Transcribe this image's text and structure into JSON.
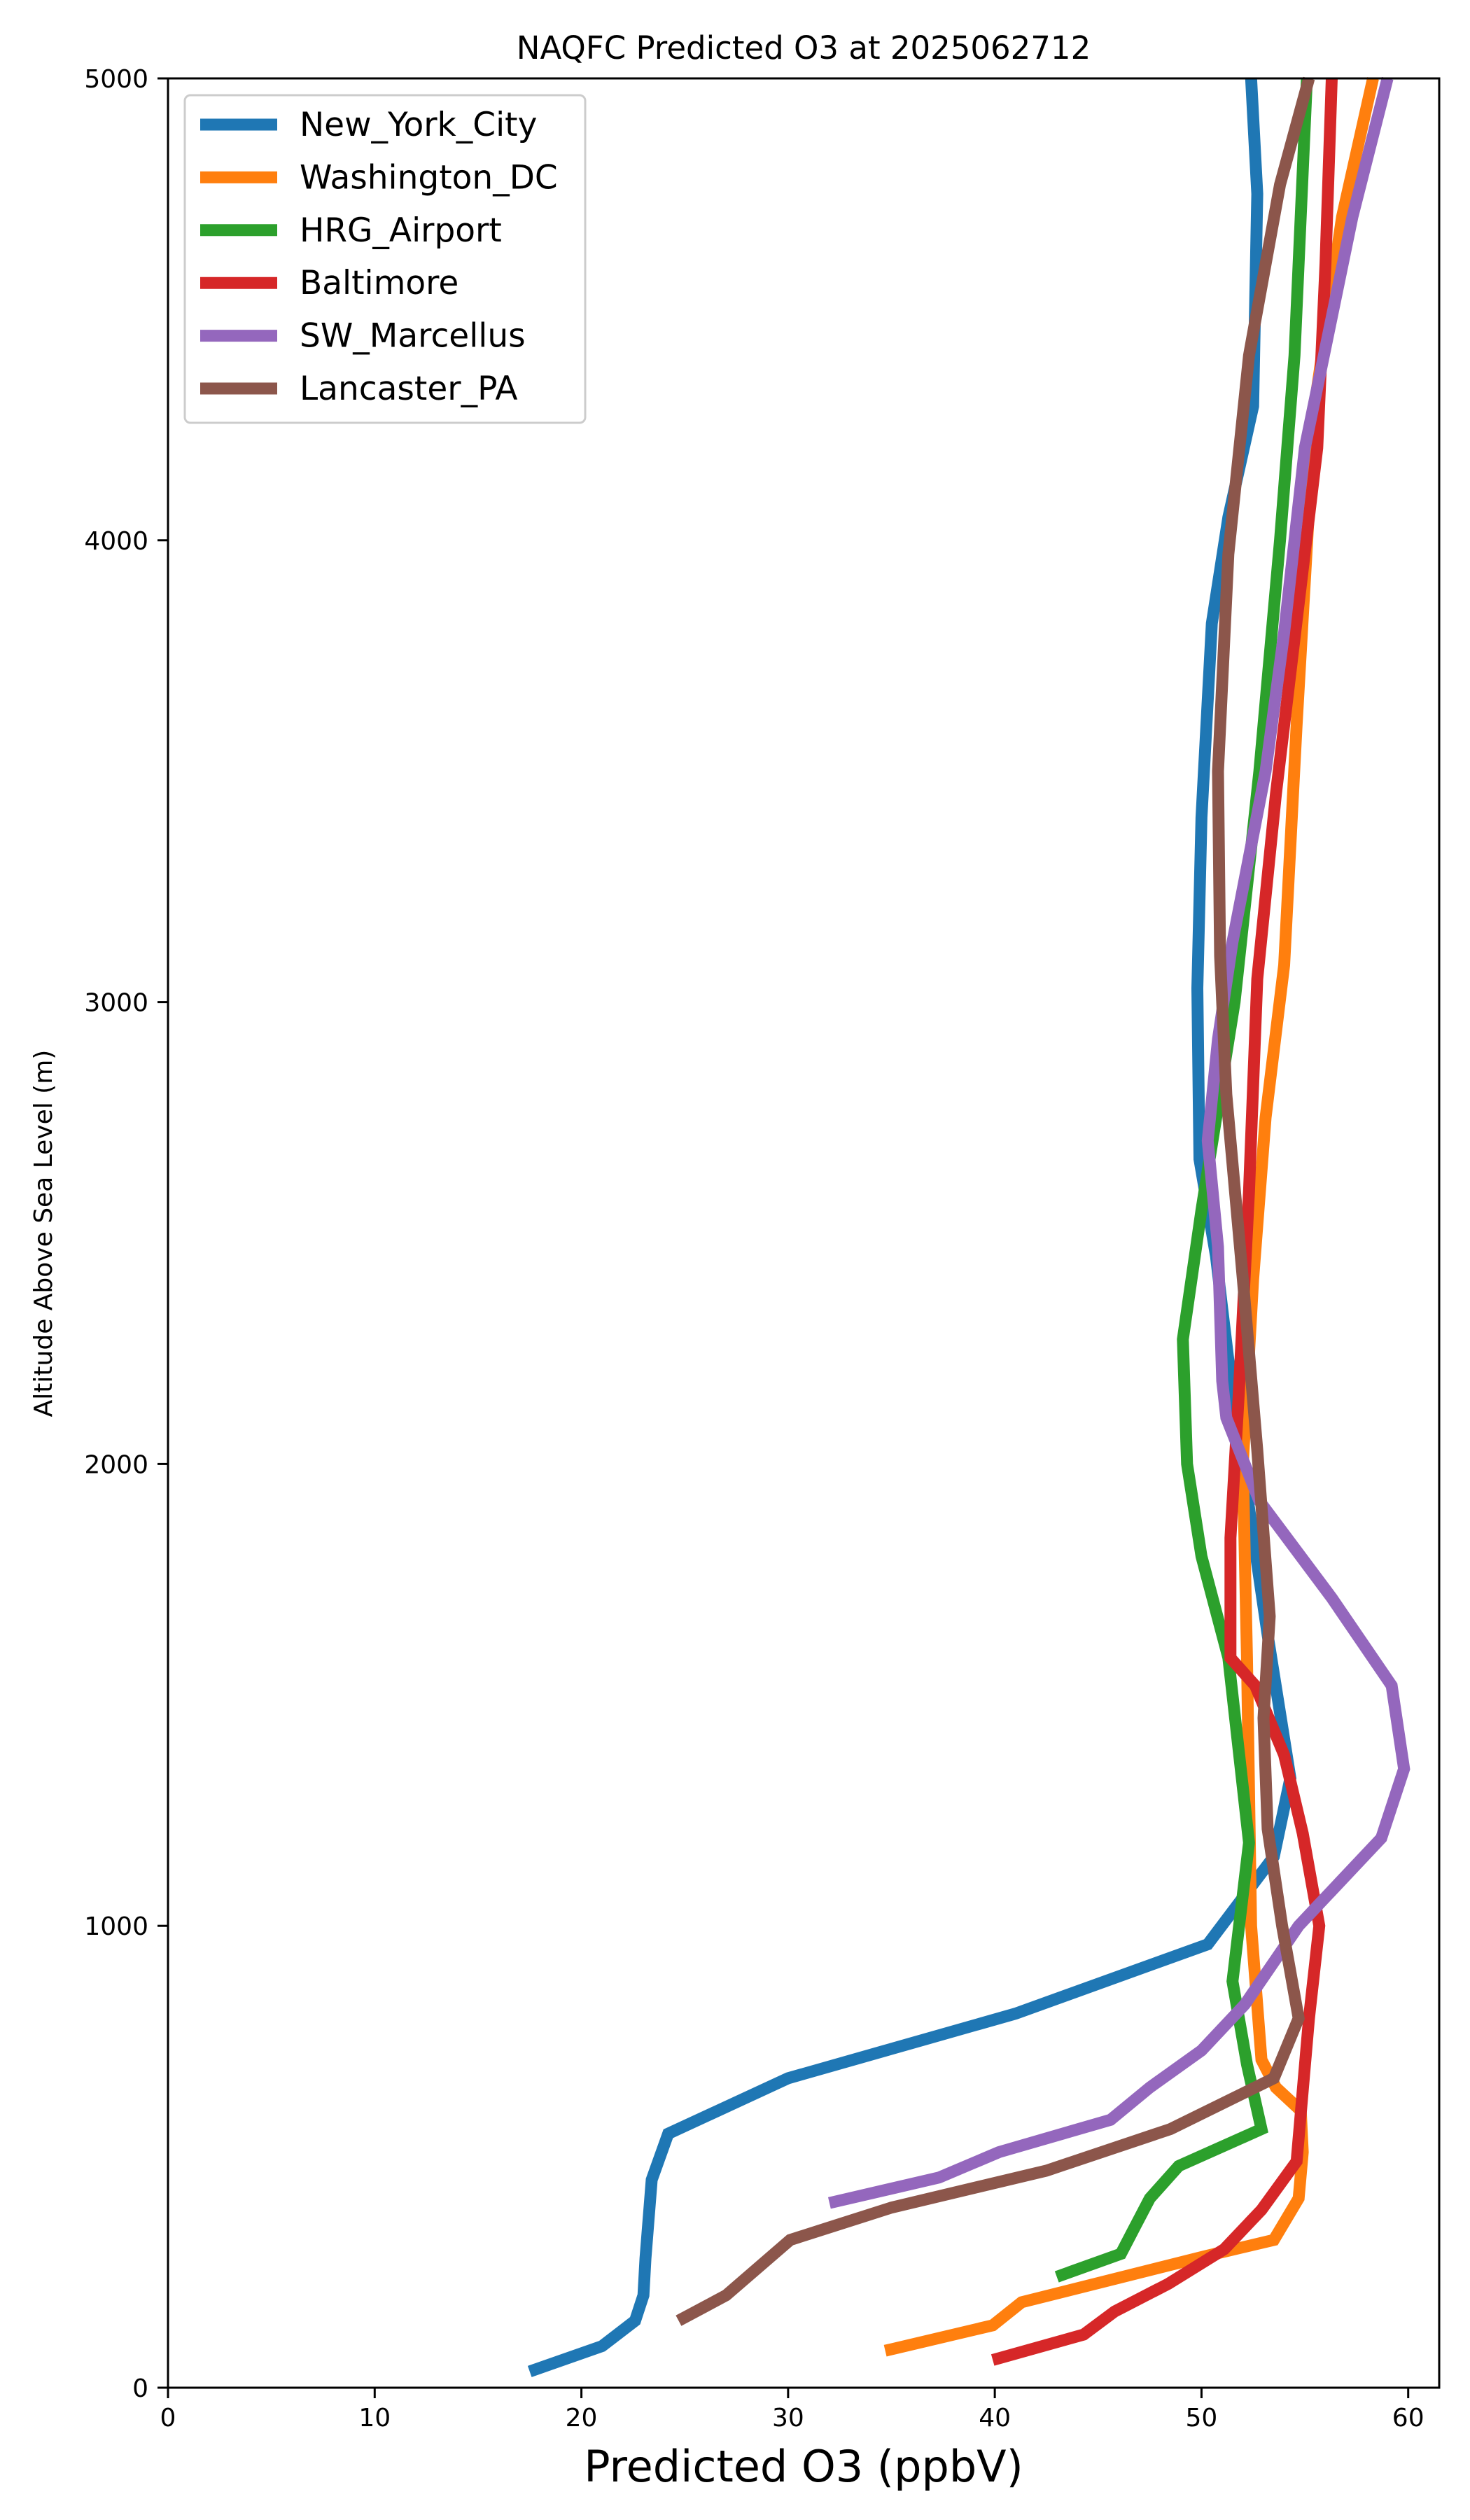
{
  "chart_data": {
    "type": "line",
    "title": "NAQFC Predicted O3 at 2025062712",
    "xlabel": "Predicted O3 (ppbV)",
    "ylabel": "Altitude Above Sea Level (m)",
    "xlim": [
      0,
      61.5
    ],
    "ylim": [
      0,
      5000
    ],
    "xticks": [
      0,
      10,
      20,
      30,
      40,
      50,
      60
    ],
    "yticks": [
      0,
      1000,
      2000,
      3000,
      4000,
      5000
    ],
    "grid": false,
    "legend_position": "top-left",
    "series": [
      {
        "name": "New_York_City",
        "color": "#1f77b4",
        "points": [
          [
            17.5,
            35
          ],
          [
            21.0,
            90
          ],
          [
            22.6,
            145
          ],
          [
            23.0,
            200
          ],
          [
            23.1,
            280
          ],
          [
            23.4,
            450
          ],
          [
            24.2,
            550
          ],
          [
            30.0,
            670
          ],
          [
            41.0,
            810
          ],
          [
            50.3,
            960
          ],
          [
            53.5,
            1150
          ],
          [
            54.3,
            1320
          ],
          [
            53.2,
            1630
          ],
          [
            51.5,
            2150
          ],
          [
            50.7,
            2450
          ],
          [
            49.9,
            2660
          ],
          [
            49.8,
            3030
          ],
          [
            50.0,
            3400
          ],
          [
            50.5,
            3820
          ],
          [
            51.3,
            4050
          ],
          [
            52.5,
            4290
          ],
          [
            52.7,
            4750
          ],
          [
            52.4,
            5000
          ]
        ]
      },
      {
        "name": "Washington_DC",
        "color": "#ff7f0e",
        "points": [
          [
            34.7,
            80
          ],
          [
            39.9,
            135
          ],
          [
            41.3,
            185
          ],
          [
            50.2,
            285
          ],
          [
            53.5,
            320
          ],
          [
            54.7,
            410
          ],
          [
            54.9,
            510
          ],
          [
            54.8,
            600
          ],
          [
            53.6,
            650
          ],
          [
            52.9,
            710
          ],
          [
            52.4,
            1000
          ],
          [
            52.2,
            1580
          ],
          [
            52.0,
            2000
          ],
          [
            52.5,
            2400
          ],
          [
            53.1,
            2750
          ],
          [
            54.0,
            3080
          ],
          [
            54.6,
            3600
          ],
          [
            55.5,
            4300
          ],
          [
            56.8,
            4700
          ],
          [
            58.3,
            5000
          ]
        ]
      },
      {
        "name": "HRG_Airport",
        "color": "#2ca02c",
        "points": [
          [
            43.0,
            240
          ],
          [
            46.1,
            290
          ],
          [
            46.8,
            350
          ],
          [
            47.5,
            410
          ],
          [
            48.9,
            480
          ],
          [
            52.9,
            560
          ],
          [
            52.2,
            700
          ],
          [
            51.5,
            880
          ],
          [
            52.3,
            1180
          ],
          [
            51.3,
            1580
          ],
          [
            50.0,
            1800
          ],
          [
            49.3,
            2000
          ],
          [
            49.1,
            2270
          ],
          [
            50.0,
            2550
          ],
          [
            51.6,
            3000
          ],
          [
            52.8,
            3500
          ],
          [
            53.8,
            4000
          ],
          [
            54.5,
            4400
          ],
          [
            55.1,
            5000
          ]
        ]
      },
      {
        "name": "Baltimore",
        "color": "#d62728",
        "points": [
          [
            39.9,
            60
          ],
          [
            44.3,
            115
          ],
          [
            45.8,
            165
          ],
          [
            48.4,
            225
          ],
          [
            51.1,
            300
          ],
          [
            52.9,
            385
          ],
          [
            54.6,
            490
          ],
          [
            55.2,
            800
          ],
          [
            55.7,
            1000
          ],
          [
            54.9,
            1200
          ],
          [
            54.0,
            1370
          ],
          [
            52.6,
            1520
          ],
          [
            51.4,
            1580
          ],
          [
            51.4,
            1840
          ],
          [
            51.8,
            2150
          ],
          [
            52.3,
            2590
          ],
          [
            52.7,
            3050
          ],
          [
            53.6,
            3450
          ],
          [
            54.8,
            3900
          ],
          [
            55.6,
            4200
          ],
          [
            56.0,
            4600
          ],
          [
            56.3,
            5000
          ]
        ]
      },
      {
        "name": "SW_Marcellus",
        "color": "#9467bd",
        "points": [
          [
            32.0,
            400
          ],
          [
            37.3,
            455
          ],
          [
            40.2,
            510
          ],
          [
            45.6,
            580
          ],
          [
            47.5,
            650
          ],
          [
            50.0,
            730
          ],
          [
            52.1,
            830
          ],
          [
            54.7,
            1000
          ],
          [
            58.7,
            1190
          ],
          [
            59.8,
            1340
          ],
          [
            59.2,
            1520
          ],
          [
            56.3,
            1710
          ],
          [
            52.8,
            1920
          ],
          [
            51.2,
            2100
          ],
          [
            51.0,
            2180
          ],
          [
            50.8,
            2470
          ],
          [
            50.3,
            2700
          ],
          [
            50.8,
            2920
          ],
          [
            51.5,
            3130
          ],
          [
            53.1,
            3500
          ],
          [
            54.0,
            3800
          ],
          [
            55.0,
            4200
          ],
          [
            57.3,
            4700
          ],
          [
            59.0,
            5000
          ]
        ]
      },
      {
        "name": "Lancaster_PA",
        "color": "#8c564b",
        "points": [
          [
            24.7,
            145
          ],
          [
            27.0,
            200
          ],
          [
            30.1,
            320
          ],
          [
            35.0,
            390
          ],
          [
            42.5,
            470
          ],
          [
            48.5,
            560
          ],
          [
            53.5,
            670
          ],
          [
            54.7,
            800
          ],
          [
            53.9,
            1000
          ],
          [
            53.2,
            1210
          ],
          [
            53.0,
            1450
          ],
          [
            53.3,
            1670
          ],
          [
            52.7,
            2030
          ],
          [
            52.0,
            2400
          ],
          [
            51.2,
            2800
          ],
          [
            50.9,
            3100
          ],
          [
            50.8,
            3500
          ],
          [
            51.3,
            3970
          ],
          [
            52.3,
            4400
          ],
          [
            53.8,
            4770
          ],
          [
            55.2,
            5000
          ]
        ]
      }
    ]
  }
}
